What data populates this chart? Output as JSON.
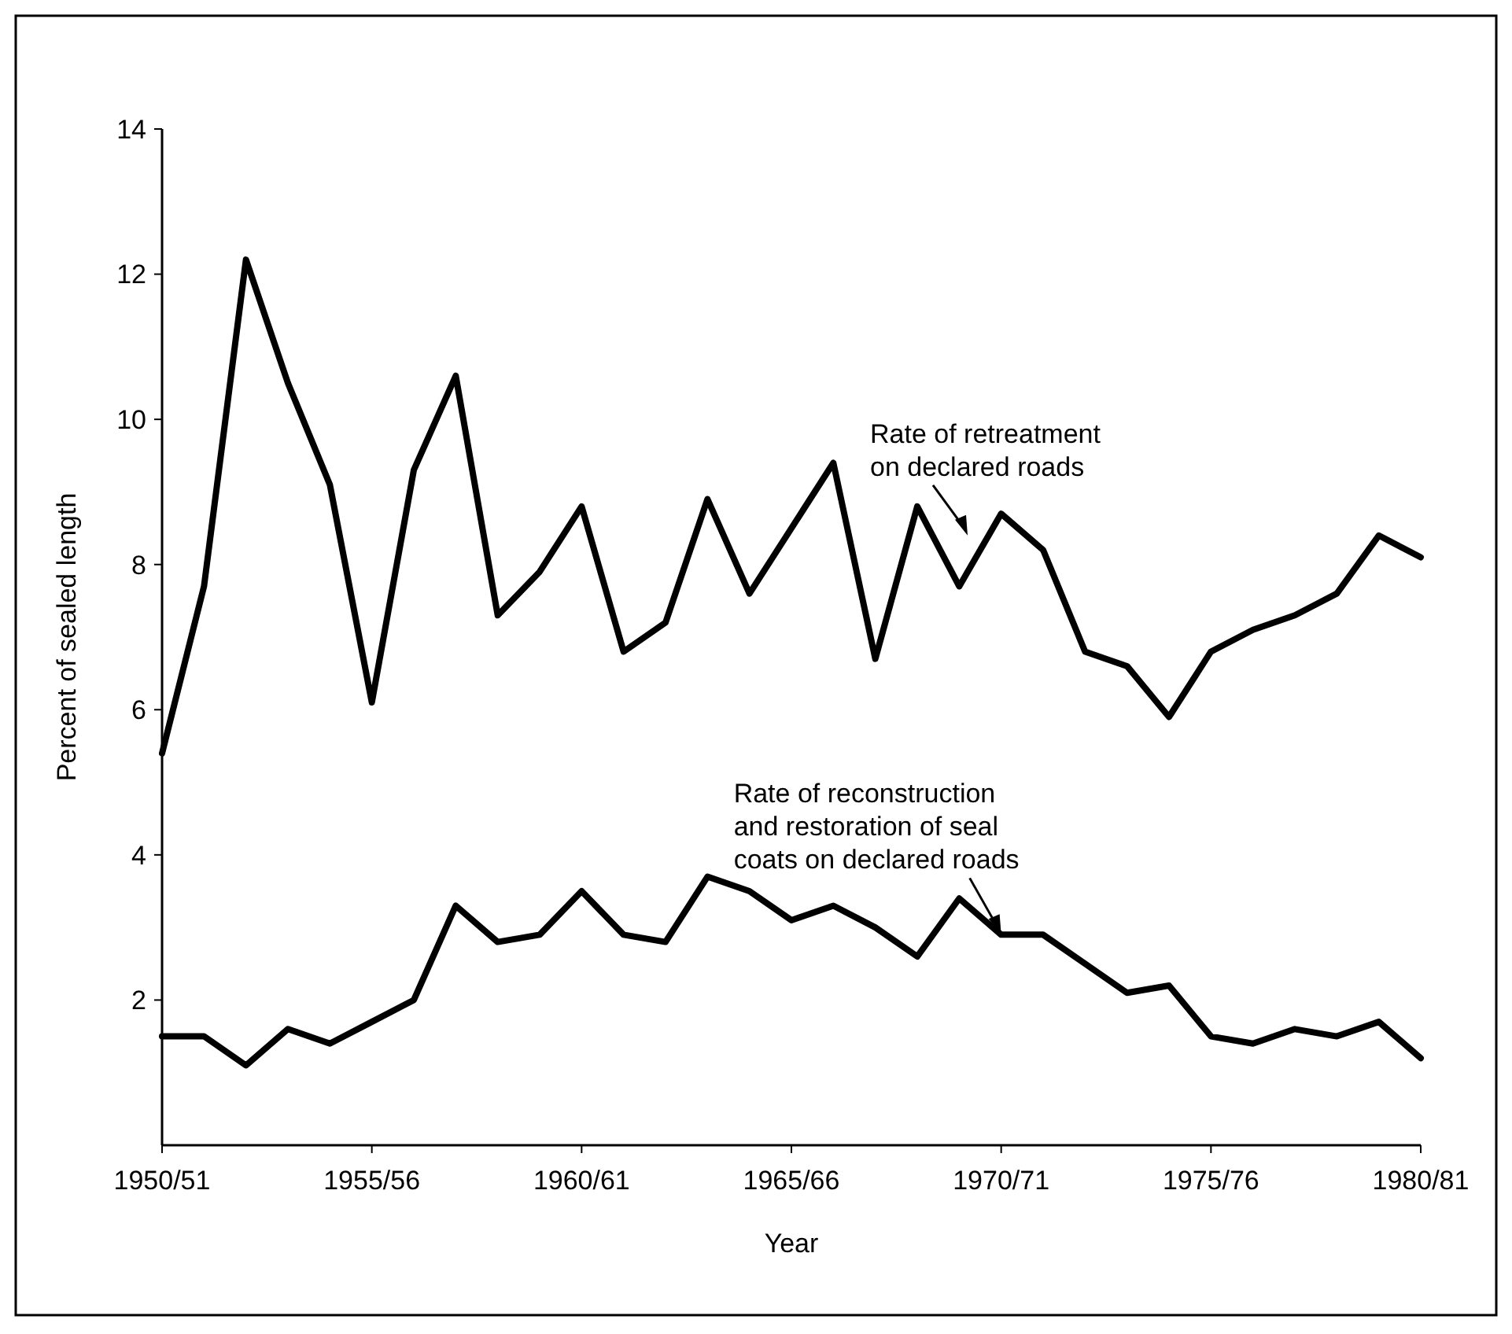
{
  "chart_data": {
    "type": "line",
    "xlabel": "Year",
    "ylabel": "Percent of sealed length",
    "categories": [
      "1950/51",
      null,
      null,
      null,
      null,
      "1955/56",
      null,
      null,
      null,
      null,
      "1960/61",
      null,
      null,
      null,
      null,
      "1965/66",
      null,
      null,
      null,
      null,
      "1970/71",
      null,
      null,
      null,
      null,
      "1975/76",
      null,
      null,
      null,
      null,
      "1980/81"
    ],
    "series": [
      {
        "color": "#000000",
        "values": [
          5.4,
          7.7,
          12.2,
          10.5,
          9.1,
          6.1,
          9.3,
          10.6,
          7.3,
          7.9,
          8.8,
          6.8,
          7.2,
          8.9,
          7.6,
          8.5,
          9.4,
          6.7,
          8.8,
          7.7,
          8.7,
          8.2,
          6.8,
          6.6,
          5.9,
          6.8,
          7.1,
          7.3,
          7.6,
          8.4,
          8.1
        ]
      },
      {
        "color": "#000000",
        "values": [
          1.5,
          1.5,
          1.1,
          1.6,
          1.4,
          1.7,
          2.0,
          3.3,
          2.8,
          2.9,
          3.5,
          2.9,
          2.8,
          3.7,
          3.5,
          3.1,
          3.3,
          3.0,
          2.6,
          3.4,
          2.9,
          2.9,
          2.5,
          2.1,
          2.2,
          1.5,
          1.4,
          1.6,
          1.5,
          1.7,
          1.2
        ]
      }
    ],
    "ylim": [
      0,
      14
    ],
    "yticks": [
      2,
      4,
      6,
      8,
      10,
      12,
      14
    ],
    "grid": false,
    "marker": "none",
    "line_style": "solid",
    "annotations": [
      "Rate of retreatment\non declared roads",
      {
        "text": "Rate of reconstruction\nand restoration of seal\ncoats on declared roads",
        "x": "1970/71",
        "y": 2.9
      }
    ]
  }
}
